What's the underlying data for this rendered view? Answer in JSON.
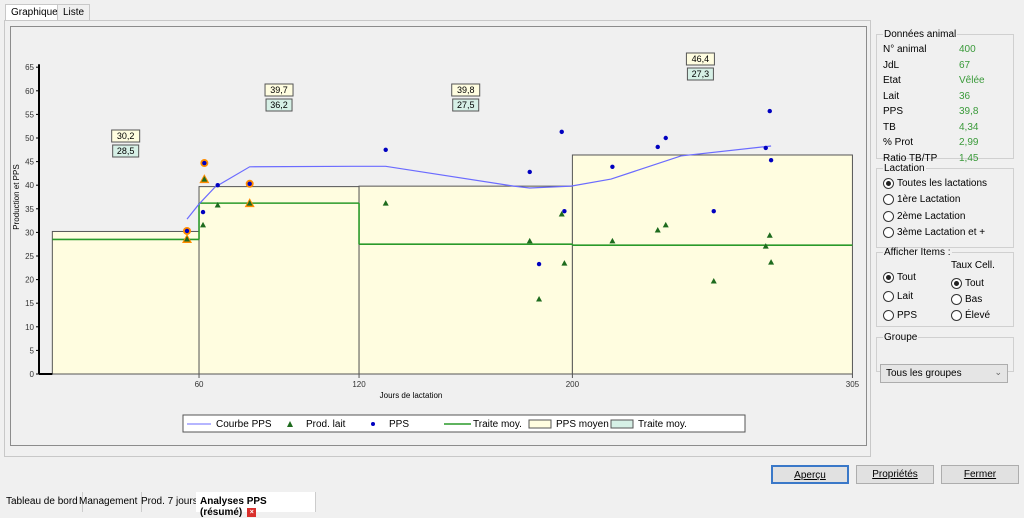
{
  "top_tabs": [
    {
      "label": "Graphique",
      "active": true
    },
    {
      "label": "Liste",
      "active": false
    }
  ],
  "chart_data": {
    "type": "bar+line+scatter",
    "xlabel": "Jours de lactation",
    "ylabel": "Production et PPS",
    "xlim": [
      0,
      305
    ],
    "ylim": [
      0,
      65
    ],
    "x_ticks": [
      60,
      120,
      200,
      305
    ],
    "y_ticks": [
      0,
      5,
      10,
      15,
      20,
      25,
      30,
      35,
      40,
      45,
      50,
      55,
      60,
      65
    ],
    "periods": [
      {
        "start": 5,
        "end": 60,
        "pps_moyen": 30.2,
        "traite_moy": 28.5,
        "pps_label": "30,2",
        "traite_label": "28,5"
      },
      {
        "start": 60,
        "end": 120,
        "pps_moyen": 39.7,
        "traite_moy": 36.2,
        "pps_label": "39,7",
        "traite_label": "36,2"
      },
      {
        "start": 120,
        "end": 200,
        "pps_moyen": 39.8,
        "traite_moy": 27.5,
        "pps_label": "39,8",
        "traite_label": "27,5"
      },
      {
        "start": 200,
        "end": 305,
        "pps_moyen": 46.4,
        "traite_moy": 27.3,
        "pps_label": "46,4",
        "traite_label": "27,3"
      }
    ],
    "courbe_pps": [
      [
        55.5,
        32.8
      ],
      [
        60,
        36
      ],
      [
        66,
        39.6
      ],
      [
        79,
        43.9
      ],
      [
        117,
        44
      ],
      [
        130,
        44
      ],
      [
        178,
        39.8
      ],
      [
        184,
        39.4
      ],
      [
        199.5,
        39.8
      ],
      [
        214.5,
        41.3
      ],
      [
        240.7,
        46.2
      ],
      [
        274.5,
        48.3
      ]
    ],
    "pps": [
      [
        55.5,
        30.3,
        true
      ],
      [
        62,
        44.7,
        true
      ],
      [
        61.5,
        34.3,
        false
      ],
      [
        67,
        40,
        false
      ],
      [
        79,
        40.3,
        true
      ],
      [
        130,
        47.5,
        false
      ],
      [
        184,
        42.8,
        false
      ],
      [
        187.5,
        23.3,
        false
      ],
      [
        196,
        51.3,
        false
      ],
      [
        197,
        34.5,
        false
      ],
      [
        215,
        43.9,
        false
      ],
      [
        232,
        48.1,
        false
      ],
      [
        235,
        50,
        false
      ],
      [
        253,
        34.5,
        false
      ],
      [
        272.5,
        47.9,
        false
      ],
      [
        274,
        55.7,
        false
      ],
      [
        274.5,
        45.3,
        false
      ]
    ],
    "prod_lait": [
      [
        55.5,
        28.6,
        true
      ],
      [
        62,
        41.3,
        true
      ],
      [
        61.5,
        31.6,
        false
      ],
      [
        67,
        35.8,
        false
      ],
      [
        79,
        36.2,
        true
      ],
      [
        130,
        36.2,
        false
      ],
      [
        184,
        28.2,
        false
      ],
      [
        187.5,
        15.9,
        false
      ],
      [
        196,
        33.9,
        false
      ],
      [
        197,
        23.5,
        false
      ],
      [
        215,
        28.2,
        false
      ],
      [
        232,
        30.5,
        false
      ],
      [
        235,
        31.6,
        false
      ],
      [
        253,
        19.7,
        false
      ],
      [
        272.5,
        27.1,
        false
      ],
      [
        274,
        29.4,
        false
      ],
      [
        274.5,
        23.7,
        false
      ]
    ],
    "legend": [
      "Courbe PPS",
      "Prod. lait",
      "PPS",
      "Traite moy.",
      "PPS moyen",
      "Traite moy."
    ],
    "legend_position": "bottom",
    "colors": {
      "courbe": "#6b6bff",
      "prod_lait": "#1e6b1e",
      "pps": "#0000c0",
      "traite": "#2a9a2a",
      "pps_moyen_fill": "#fffde0",
      "traite_fill": "#d6f0e6",
      "highlight": "#ff8c00"
    }
  },
  "animal": {
    "title": "Données animal",
    "rows": [
      {
        "k": "N° animal",
        "v": "400"
      },
      {
        "k": "JdL",
        "v": "67"
      },
      {
        "k": "Etat",
        "v": "Vêlée"
      },
      {
        "k": "Lait",
        "v": "36"
      },
      {
        "k": "PPS",
        "v": "39,8"
      },
      {
        "k": "TB",
        "v": "4,34"
      },
      {
        "k": "% Prot",
        "v": "2,99"
      },
      {
        "k": "Ratio TB/TP",
        "v": "1,45"
      }
    ]
  },
  "lactation": {
    "title": "Lactation",
    "options": [
      "Toutes les lactations",
      "1ère Lactation",
      "2ème Lactation",
      "3ème Lactation et +"
    ],
    "selected": 0
  },
  "afficher": {
    "title": "Afficher Items :",
    "options": [
      "Tout",
      "Lait",
      "PPS"
    ],
    "selected": 0,
    "taux_title": "Taux Cell.",
    "taux_options": [
      "Tout",
      "Bas",
      "Élevé"
    ],
    "taux_selected": 0
  },
  "groupe": {
    "title": "Groupe",
    "value": "Tous les groupes"
  },
  "buttons": {
    "apercu": "Aperçu",
    "proprietes": "Propriétés",
    "fermer": "Fermer"
  },
  "bottom_tabs": [
    "Tableau de bord",
    "Management",
    "Prod. 7 jours",
    "Analyses PPS (résumé)"
  ]
}
